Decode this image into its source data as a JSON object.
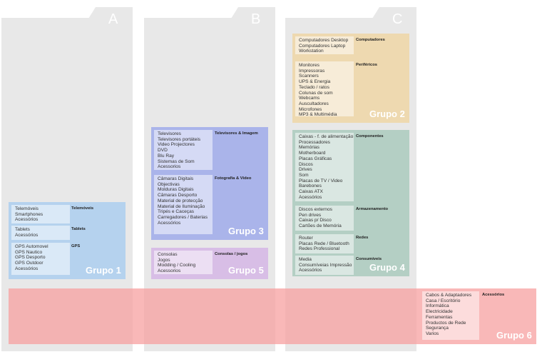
{
  "columns": [
    {
      "letter": "A"
    },
    {
      "letter": "B"
    },
    {
      "letter": "C"
    }
  ],
  "groups": [
    {
      "name": "Grupo 1",
      "color": "#b5d2ee",
      "sections": [
        {
          "category": "Telemóveis",
          "items": [
            "Telemóveis",
            "Smartphones",
            "Acessórios"
          ]
        },
        {
          "category": "Tablets",
          "items": [
            "Tablets",
            "Acessórios"
          ]
        },
        {
          "category": "GPS",
          "items": [
            "GPS Automovel",
            "GPS Nautico",
            "GPS Desporto",
            "GPS Outdoor",
            "Acessórios"
          ]
        }
      ]
    },
    {
      "name": "Grupo 3",
      "color": "#aab4ea",
      "sections": [
        {
          "category": "Televisores & Imagem",
          "items": [
            "Televisores",
            "Televisores portáteis",
            "Video Projectores",
            "DVD",
            "Blu Ray",
            "Sistemas de Som",
            "Acessorios"
          ]
        },
        {
          "category": "Fotografia & Video",
          "items": [
            "Câmaras Digitais",
            "Objectivas",
            "Molduras Digitais",
            "Câmaras Desporto",
            "Material de protecção",
            "Material de Iluminação",
            "Tripés e Caceças",
            "Carregadores / Baterias",
            "Acessórios"
          ]
        }
      ]
    },
    {
      "name": "Grupo 5",
      "color": "#d8bee6",
      "sections": [
        {
          "category": "Consolas / jogos",
          "items": [
            "Consolas",
            "Jogos",
            "Modding / Cooling",
            "Acessorios"
          ]
        }
      ]
    },
    {
      "name": "Grupo 2",
      "color": "#eed9b0",
      "sections": [
        {
          "category": "Computadores",
          "items": [
            "Computadores Desktop",
            "Computadores Laptop",
            "Workstation"
          ]
        },
        {
          "category": "Periféricos",
          "items": [
            "Monitores",
            "Impressoras",
            "Scanners",
            "UPS & Energia",
            "Teclado / ratos",
            "Colunas de som",
            "Webcams",
            "Auscultadores",
            "Microfones",
            "MP3 & Multimédia"
          ]
        }
      ]
    },
    {
      "name": "Grupo 4",
      "color": "#b4cfc4",
      "sections": [
        {
          "category": "Componentes",
          "items": [
            "Caixas - f. de alimentação",
            "Processadores",
            "Memórias",
            "Motherboard",
            "Placas Gráficas",
            "Discos",
            "Drives",
            "Som",
            "Placas de TV / Video",
            "Barebones",
            "Caixas ATX",
            "Acessórios"
          ]
        },
        {
          "category": "Armazenamento",
          "items": [
            "Discos externos",
            "Pen drives",
            "Caixas p/ Disco",
            "Cartões de Memória"
          ]
        },
        {
          "category": "Redes",
          "items": [
            "Router",
            "Placas Rede / Bluetooth",
            "Redes Professional"
          ]
        },
        {
          "category": "Consumíveis",
          "items": [
            "Media",
            "Consumíveias Impressão",
            "Acessórios"
          ]
        }
      ]
    },
    {
      "name": "Grupo 6",
      "color": "#f7a0a0",
      "sections": [
        {
          "category": "Acessórios",
          "items": [
            "Cabos & Adaptadores",
            "Casa / Escritório",
            "Informática",
            "Electricidade",
            "Ferramentas",
            "Productos de Rede",
            "Segurança",
            "Varios"
          ]
        }
      ]
    }
  ]
}
